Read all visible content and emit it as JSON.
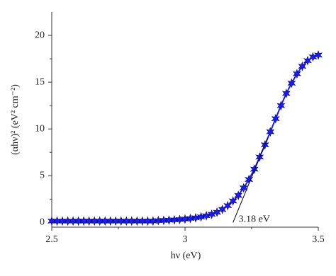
{
  "chart_data": {
    "type": "scatter",
    "x_label": "hν (eV)",
    "y_label": "(αhν)² (eV² cm⁻²)",
    "xlim": [
      2.5,
      3.5
    ],
    "xticks": [
      2.5,
      3,
      3.5
    ],
    "xminorticks": [
      2.75,
      3.25
    ],
    "ylim": [
      -0.5,
      22.5
    ],
    "yticks": [
      0,
      5,
      10,
      15,
      20
    ],
    "yminorticks": [
      2.5,
      7.5,
      12.5,
      17.5
    ],
    "series": [
      {
        "color": "#1c1cf0",
        "x": [
          2.5,
          2.52,
          2.54,
          2.56,
          2.58,
          2.6,
          2.62,
          2.64,
          2.66,
          2.68,
          2.7,
          2.72,
          2.74,
          2.76,
          2.78,
          2.8,
          2.82,
          2.84,
          2.86,
          2.88,
          2.9,
          2.92,
          2.94,
          2.96,
          2.98,
          3.0,
          3.02,
          3.04,
          3.06,
          3.08,
          3.1,
          3.12,
          3.14,
          3.16,
          3.18,
          3.2,
          3.22,
          3.24,
          3.26,
          3.28,
          3.3,
          3.32,
          3.34,
          3.36,
          3.38,
          3.4,
          3.42,
          3.44,
          3.46,
          3.48,
          3.5
        ],
        "values": [
          0.15,
          0.15,
          0.15,
          0.15,
          0.15,
          0.15,
          0.15,
          0.15,
          0.15,
          0.15,
          0.15,
          0.15,
          0.15,
          0.15,
          0.15,
          0.15,
          0.15,
          0.15,
          0.15,
          0.15,
          0.2,
          0.22,
          0.25,
          0.28,
          0.32,
          0.37,
          0.43,
          0.5,
          0.6,
          0.72,
          0.88,
          1.1,
          1.4,
          1.8,
          2.3,
          2.9,
          3.7,
          4.6,
          5.7,
          7.0,
          8.3,
          9.7,
          11.1,
          12.5,
          13.8,
          14.9,
          15.9,
          16.7,
          17.3,
          17.7,
          17.9
        ]
      }
    ],
    "fit_line": {
      "color": "#000000",
      "x": [
        3.18,
        3.31
      ],
      "values": [
        0,
        9
      ]
    },
    "annotation": "3.18 eV"
  }
}
